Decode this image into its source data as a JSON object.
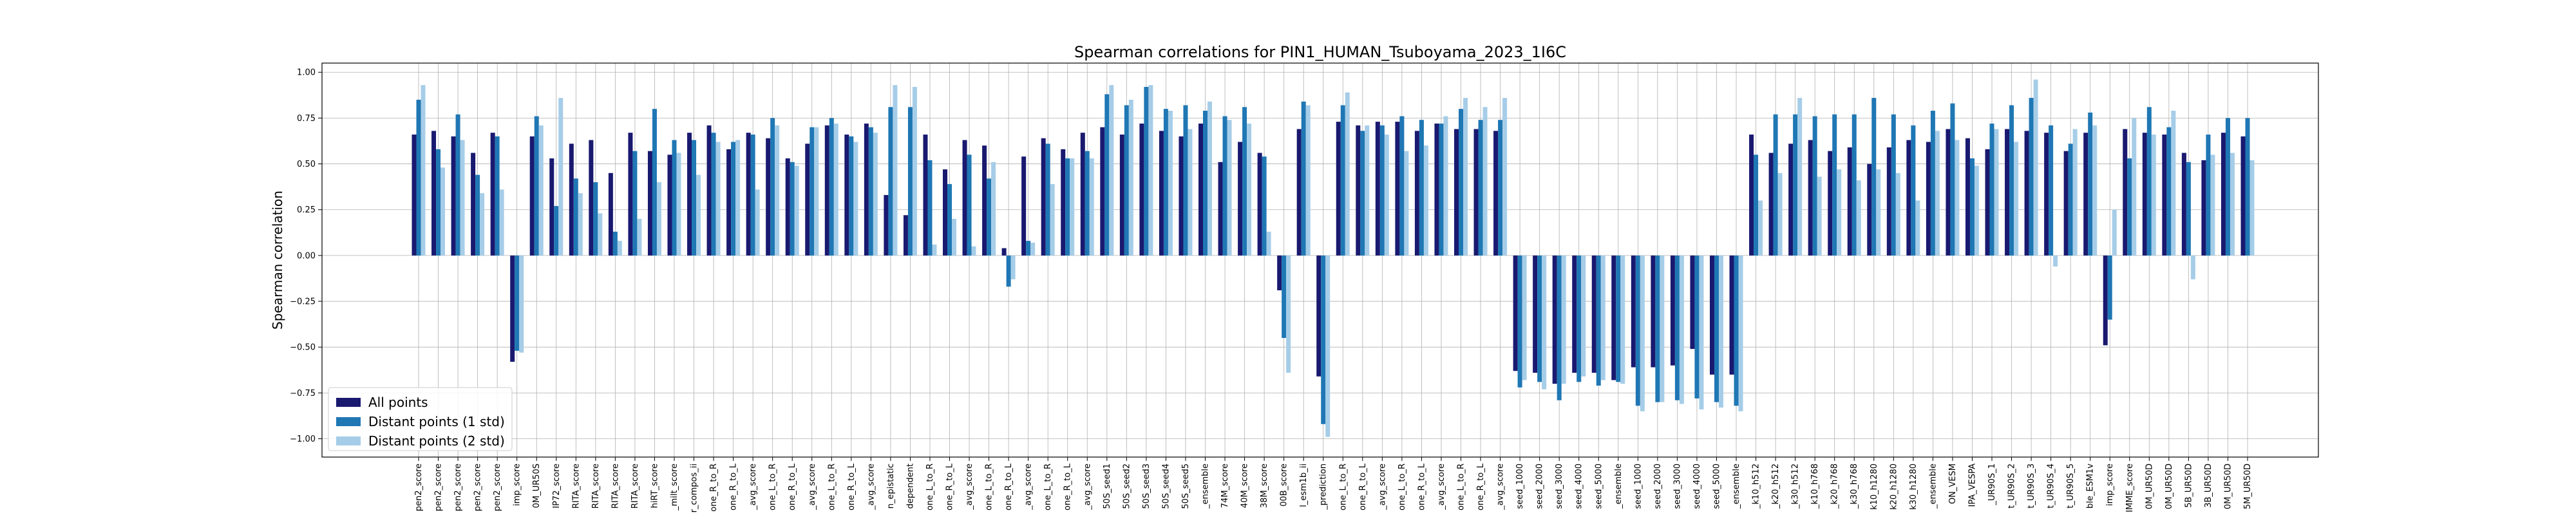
{
  "chart_data": {
    "type": "bar",
    "title": "Spearman correlations for PIN1_HUMAN_Tsuboyama_2023_1I6C",
    "xlabel": "",
    "ylabel": "Spearman correlation",
    "ylim": [
      -1.1,
      1.05
    ],
    "yticks": [
      -1.0,
      -0.75,
      -0.5,
      -0.25,
      0.0,
      0.25,
      0.5,
      0.75,
      1.0
    ],
    "ytick_labels": [
      "−1.00",
      "−0.75",
      "−0.50",
      "−0.25",
      "0.00",
      "0.25",
      "0.50",
      "0.75",
      "1.00"
    ],
    "grid": true,
    "legend_position": "lower-left",
    "colors": [
      "#191970",
      "#1f77b4",
      "#a6cde8"
    ],
    "categories": [
      "pen2_score",
      "pen2_score",
      "pen2_score",
      "pen2_score",
      "pen2_score",
      "imp_score",
      "0M_UR50S",
      "IP72_score",
      "RITA_score",
      "RITA_score",
      "RITA_score",
      "RITA_score",
      "hiRT_score",
      "_milt_score",
      "r_compos_ii",
      "one_R_to_R",
      "one_R_to_L",
      "_avg_score",
      "one_L_to_R",
      "one_R_to_L",
      "_avg_score",
      "one_L_to_R",
      "one_R_to_L",
      "_avg_score",
      "n_epistatic",
      "dependent",
      "one_L_to_R",
      "one_R_to_L",
      "_avg_score",
      "one_L_to_R",
      "one_R_to_L",
      "_avg_score",
      "one_L_to_R",
      "one_R_to_L",
      "_avg_score",
      "50S_seed1",
      "50S_seed2",
      "50S_seed3",
      "50S_seed4",
      "50S_seed5",
      "_ensemble",
      "74M_score",
      "40M_score",
      "38M_score",
      "00B_score",
      "l_esm1b_ii",
      "_prediction",
      "one_L_to_R",
      "one_R_to_L",
      "_avg_score",
      "one_L_to_R",
      "one_R_to_L",
      "_avg_score",
      "one_L_to_R",
      "one_R_to_L",
      "_avg_score",
      "seed_1000",
      "seed_2000",
      "seed_3000",
      "seed_4000",
      "seed_5000",
      "_ensemble",
      "seed_1000",
      "seed_2000",
      "seed_3000",
      "seed_4000",
      "seed_5000",
      "_ensemble",
      "_k10_h512",
      "_k20_h512",
      "_k30_h512",
      "_k10_h768",
      "_k20_h768",
      "_k30_h768",
      "k10_h1280",
      "k20_h1280",
      "k30_h1280",
      "_ensemble",
      "ON_VESM",
      "IPA_VESPA",
      "_UR90S_1",
      "t_UR90S_2",
      "t_UR90S_3",
      "t_UR90S_4",
      "t_UR90S_5",
      "ble_ESM1v",
      "imp_score",
      "IMME_score",
      "0M_UR50D",
      "0M_UR50D",
      "5B_UR50D",
      "3B_UR50D",
      "0M_UR50D",
      "5M_UR50D"
    ],
    "series": [
      {
        "name": "All points",
        "values": [
          0.66,
          0.68,
          0.65,
          0.56,
          0.67,
          -0.58,
          0.65,
          0.53,
          0.61,
          0.63,
          0.45,
          0.67,
          0.57,
          0.55,
          0.67,
          0.71,
          0.58,
          0.67,
          0.64,
          0.53,
          0.61,
          0.71,
          0.66,
          0.72,
          0.33,
          0.22,
          0.66,
          0.47,
          0.63,
          0.6,
          0.04,
          0.54,
          0.64,
          0.58,
          0.67,
          0.7,
          0.66,
          0.72,
          0.68,
          0.65,
          0.72,
          0.51,
          0.62,
          0.56,
          -0.19,
          0.69,
          -0.66,
          0.73,
          0.71,
          0.73,
          0.73,
          0.68,
          0.72,
          0.69,
          0.69,
          0.68,
          -0.63,
          -0.64,
          -0.7,
          -0.64,
          -0.64,
          -0.68,
          -0.61,
          -0.61,
          -0.6,
          -0.51,
          -0.65,
          -0.65,
          0.66,
          0.56,
          0.61,
          0.63,
          0.57,
          0.59,
          0.5,
          0.59,
          0.63,
          0.62,
          0.69,
          0.64,
          0.58,
          0.69,
          0.68,
          0.67,
          0.57,
          0.67,
          -0.49,
          0.69,
          0.67,
          0.66,
          0.56,
          0.52,
          0.67,
          0.65
        ]
      },
      {
        "name": "Distant points (1 std)",
        "values": [
          0.85,
          0.58,
          0.77,
          0.44,
          0.65,
          -0.52,
          0.76,
          0.27,
          0.42,
          0.4,
          0.13,
          0.57,
          0.8,
          0.63,
          0.63,
          0.67,
          0.62,
          0.66,
          0.75,
          0.51,
          0.7,
          0.75,
          0.65,
          0.7,
          0.81,
          0.81,
          0.52,
          0.39,
          0.55,
          0.42,
          -0.17,
          0.08,
          0.61,
          0.53,
          0.57,
          0.88,
          0.82,
          0.92,
          0.8,
          0.82,
          0.79,
          0.76,
          0.81,
          0.54,
          -0.45,
          0.84,
          -0.92,
          0.82,
          0.68,
          0.71,
          0.76,
          0.74,
          0.72,
          0.8,
          0.74,
          0.74,
          -0.72,
          -0.69,
          -0.79,
          -0.69,
          -0.71,
          -0.69,
          -0.82,
          -0.8,
          -0.79,
          -0.78,
          -0.8,
          -0.82,
          0.55,
          0.77,
          0.77,
          0.76,
          0.77,
          0.77,
          0.86,
          0.77,
          0.71,
          0.79,
          0.83,
          0.53,
          0.72,
          0.82,
          0.86,
          0.71,
          0.61,
          0.78,
          -0.35,
          0.53,
          0.81,
          0.7,
          0.51,
          0.66,
          0.75,
          0.75
        ]
      },
      {
        "name": "Distant points (2 std)",
        "values": [
          0.93,
          0.48,
          0.63,
          0.34,
          0.36,
          -0.53,
          0.71,
          0.86,
          0.34,
          0.23,
          0.08,
          0.2,
          0.4,
          0.56,
          0.44,
          0.62,
          0.63,
          0.36,
          0.71,
          0.49,
          0.7,
          0.72,
          0.62,
          0.67,
          0.93,
          0.92,
          0.06,
          0.2,
          0.05,
          0.51,
          -0.13,
          0.07,
          0.39,
          0.53,
          0.53,
          0.93,
          0.85,
          0.93,
          0.79,
          0.69,
          0.84,
          0.74,
          0.72,
          0.13,
          -0.64,
          0.82,
          -0.99,
          0.89,
          0.71,
          0.66,
          0.57,
          0.6,
          0.76,
          0.86,
          0.81,
          0.86,
          -0.68,
          -0.73,
          -0.7,
          -0.66,
          -0.68,
          -0.7,
          -0.85,
          -0.8,
          -0.81,
          -0.84,
          -0.83,
          -0.85,
          0.3,
          0.45,
          0.86,
          0.43,
          0.47,
          0.41,
          0.47,
          0.45,
          0.3,
          0.68,
          0.63,
          0.49,
          0.69,
          0.62,
          0.96,
          -0.06,
          0.69,
          0.71,
          0.25,
          0.75,
          0.66,
          0.79,
          -0.13,
          0.55,
          0.56,
          0.52
        ]
      }
    ]
  }
}
